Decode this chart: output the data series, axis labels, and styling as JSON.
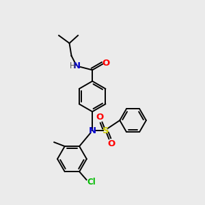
{
  "background_color": "#ebebeb",
  "atom_colors": {
    "C": "#000000",
    "N": "#0000cc",
    "O": "#ff0000",
    "S": "#cccc00",
    "Cl": "#00bb00",
    "H": "#555555"
  },
  "bond_color": "#000000",
  "bond_width": 1.4,
  "font_size": 8.5
}
